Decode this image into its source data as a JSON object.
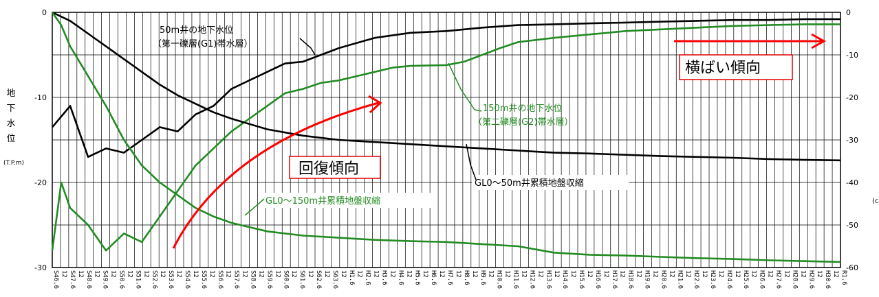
{
  "chart_data": {
    "type": "line",
    "ylabel_left": [
      "地",
      "下",
      "水",
      "位"
    ],
    "ylabel_left_unit": "(T.P.m)",
    "ylabel_right_unit": "(c",
    "ylim_left": [
      -30,
      0
    ],
    "ylim_right": [
      -60,
      0
    ],
    "yticks_left": [
      "0",
      "-10",
      "-20",
      "-30"
    ],
    "yticks_right": [
      "0",
      "-10",
      "-20",
      "-30",
      "-40",
      "-50",
      "-60"
    ],
    "x_start_year": 46,
    "x_years": 44,
    "x_tick_labels": [
      "S46.6",
      "12",
      "S47.6",
      "12",
      "S48.6",
      "12",
      "S49.6",
      "12",
      "S50.6",
      "12",
      "S51.6",
      "12",
      "S52.6",
      "12",
      "S53.6",
      "12",
      "S54.6",
      "12",
      "S55.6",
      "12",
      "S56.6",
      "12",
      "S57.6",
      "12",
      "S58.6",
      "12",
      "S59.6",
      "12",
      "S60.6",
      "12",
      "S61.6",
      "12",
      "S62.6",
      "12",
      "S63.6",
      "12",
      "H1.6",
      "12",
      "H2.6",
      "12",
      "H3.6",
      "12",
      "H4.6",
      "12",
      "H5.6",
      "12",
      "H6.6",
      "12",
      "H7.6",
      "12",
      "H8.6",
      "12",
      "H9.6",
      "12",
      "H10.6",
      "12",
      "H11.6",
      "12",
      "H12.6",
      "12",
      "H13.6",
      "12",
      "H14.6",
      "12",
      "H15.6",
      "12",
      "H16.6",
      "12",
      "H17.6",
      "12",
      "H18.6",
      "12",
      "H19.6",
      "12",
      "H20.6",
      "12",
      "H21.6",
      "12",
      "H22.6",
      "12",
      "H23.6",
      "12",
      "H24.6",
      "12",
      "H25.6",
      "12",
      "H26.6",
      "12",
      "H27.6",
      "12",
      "H28.6",
      "12",
      "H29.6",
      "12",
      "H30.6",
      "12",
      "R1.6"
    ],
    "series": [
      {
        "name": "50m井の地下水位",
        "axis": "left",
        "color": "#000000",
        "points": [
          [
            0,
            -13.5
          ],
          [
            1,
            -11
          ],
          [
            2,
            -17
          ],
          [
            3,
            -16
          ],
          [
            4,
            -16.5
          ],
          [
            5,
            -15
          ],
          [
            6,
            -13.5
          ],
          [
            7,
            -14
          ],
          [
            8,
            -12
          ],
          [
            9,
            -11
          ],
          [
            10,
            -9
          ],
          [
            11,
            -8
          ],
          [
            12,
            -7
          ],
          [
            13,
            -6
          ],
          [
            14,
            -5.8
          ],
          [
            15,
            -5
          ],
          [
            16,
            -4.2
          ],
          [
            17,
            -3.6
          ],
          [
            18,
            -3
          ],
          [
            20,
            -2.4
          ],
          [
            22,
            -2.2
          ],
          [
            24,
            -1.8
          ],
          [
            26,
            -1.5
          ],
          [
            28,
            -1.4
          ],
          [
            30,
            -1.3
          ],
          [
            32,
            -1.2
          ],
          [
            34,
            -1.1
          ],
          [
            36,
            -1.0
          ],
          [
            38,
            -0.9
          ],
          [
            40,
            -0.9
          ],
          [
            42,
            -0.8
          ],
          [
            44,
            -0.8
          ]
        ]
      },
      {
        "name": "150m井の地下水位",
        "axis": "left",
        "color": "#228b22",
        "points": [
          [
            0,
            -28
          ],
          [
            0.5,
            -20
          ],
          [
            1,
            -23
          ],
          [
            2,
            -25
          ],
          [
            3,
            -28
          ],
          [
            4,
            -26
          ],
          [
            5,
            -27
          ],
          [
            6,
            -24
          ],
          [
            7,
            -21
          ],
          [
            8,
            -18
          ],
          [
            9,
            -16
          ],
          [
            10,
            -14
          ],
          [
            11,
            -12.5
          ],
          [
            12,
            -11
          ],
          [
            13,
            -9.5
          ],
          [
            14,
            -9
          ],
          [
            15,
            -8.3
          ],
          [
            16,
            -8
          ],
          [
            17,
            -7.5
          ],
          [
            18,
            -7
          ],
          [
            19,
            -6.5
          ],
          [
            20,
            -6.3
          ],
          [
            22,
            -6.2
          ],
          [
            23,
            -5.8
          ],
          [
            24,
            -5
          ],
          [
            25,
            -4.2
          ],
          [
            26,
            -3.5
          ],
          [
            28,
            -3
          ],
          [
            30,
            -2.6
          ],
          [
            32,
            -2.2
          ],
          [
            34,
            -2
          ],
          [
            36,
            -1.8
          ],
          [
            38,
            -1.6
          ],
          [
            40,
            -1.5
          ],
          [
            42,
            -1.4
          ],
          [
            44,
            -1.4
          ]
        ]
      },
      {
        "name": "GL0〜50m井累積地盤収縮",
        "axis": "right",
        "color": "#000000",
        "points": [
          [
            0,
            0
          ],
          [
            1,
            -2
          ],
          [
            2,
            -5
          ],
          [
            3,
            -8
          ],
          [
            4,
            -11
          ],
          [
            5,
            -14
          ],
          [
            6,
            -17
          ],
          [
            7,
            -19.5
          ],
          [
            8,
            -21.5
          ],
          [
            9,
            -23.5
          ],
          [
            10,
            -25
          ],
          [
            12,
            -27.5
          ],
          [
            14,
            -29
          ],
          [
            16,
            -30
          ],
          [
            18,
            -30.5
          ],
          [
            20,
            -31
          ],
          [
            22,
            -31.5
          ],
          [
            24,
            -32
          ],
          [
            26,
            -32.5
          ],
          [
            28,
            -33
          ],
          [
            30,
            -33.2
          ],
          [
            32,
            -33.5
          ],
          [
            34,
            -33.8
          ],
          [
            36,
            -34
          ],
          [
            38,
            -34.2
          ],
          [
            40,
            -34.5
          ],
          [
            42,
            -34.7
          ],
          [
            44,
            -34.8
          ]
        ]
      },
      {
        "name": "GL0〜150m井累積地盤収縮",
        "axis": "right",
        "color": "#228b22",
        "points": [
          [
            0,
            0
          ],
          [
            0.5,
            -3
          ],
          [
            1,
            -8
          ],
          [
            2,
            -15
          ],
          [
            3,
            -22
          ],
          [
            4,
            -30
          ],
          [
            5,
            -36
          ],
          [
            6,
            -40
          ],
          [
            7,
            -43
          ],
          [
            8,
            -46
          ],
          [
            9,
            -48
          ],
          [
            10,
            -49.5
          ],
          [
            11,
            -50.5
          ],
          [
            12,
            -51.5
          ],
          [
            14,
            -52.5
          ],
          [
            16,
            -53
          ],
          [
            18,
            -53.5
          ],
          [
            20,
            -53.8
          ],
          [
            22,
            -54
          ],
          [
            24,
            -54.5
          ],
          [
            26,
            -55
          ],
          [
            28,
            -56.5
          ],
          [
            30,
            -57
          ],
          [
            32,
            -57.2
          ],
          [
            34,
            -57.5
          ],
          [
            36,
            -57.8
          ],
          [
            38,
            -58
          ],
          [
            40,
            -58.3
          ],
          [
            42,
            -58.5
          ],
          [
            44,
            -58.7
          ]
        ]
      }
    ],
    "annotations": {
      "well50_line1": "50m井の地下水位",
      "well50_line2": "（第一礫層(G1)帯水層）",
      "well150_line1": "150m井の地下水位",
      "well150_line2": "（第二礫層(G2)帯水層）",
      "subsidence50": "GL0〜50m井累積地盤収縮",
      "subsidence150": "GL0〜150m井累積地盤収縮",
      "recovery": "回復傾向",
      "flat": "横ばい傾向"
    }
  }
}
